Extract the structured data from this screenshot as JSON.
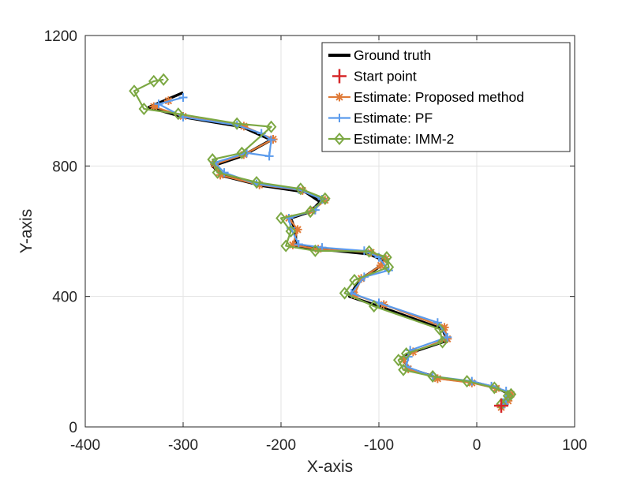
{
  "chart_data": {
    "type": "line",
    "title": "",
    "xlabel": "X-axis",
    "ylabel": "Y-axis",
    "xlim": [
      -400,
      100
    ],
    "ylim": [
      0,
      1200
    ],
    "xticks": [
      -400,
      -300,
      -200,
      -100,
      0,
      100
    ],
    "yticks": [
      0,
      400,
      800,
      1200
    ],
    "xtick_labels": [
      "-400",
      "-300",
      "-200",
      "-100",
      "0",
      "100"
    ],
    "ytick_labels": [
      "0",
      "400",
      "800",
      "1200"
    ],
    "grid": true,
    "legend_position": "top-right",
    "series": [
      {
        "name": "Ground truth",
        "color": "#000000",
        "marker": "none",
        "points": [
          [
            25,
            55
          ],
          [
            30,
            80
          ],
          [
            34,
            100
          ],
          [
            20,
            120
          ],
          [
            -5,
            138
          ],
          [
            -40,
            150
          ],
          [
            -70,
            180
          ],
          [
            -75,
            210
          ],
          [
            -70,
            225
          ],
          [
            -30,
            265
          ],
          [
            -35,
            300
          ],
          [
            -100,
            370
          ],
          [
            -130,
            400
          ],
          [
            -120,
            450
          ],
          [
            -100,
            490
          ],
          [
            -95,
            510
          ],
          [
            -110,
            530
          ],
          [
            -160,
            545
          ],
          [
            -185,
            555
          ],
          [
            -185,
            600
          ],
          [
            -190,
            640
          ],
          [
            -170,
            660
          ],
          [
            -160,
            690
          ],
          [
            -175,
            720
          ],
          [
            -220,
            740
          ],
          [
            -260,
            770
          ],
          [
            -270,
            800
          ],
          [
            -240,
            830
          ],
          [
            -210,
            880
          ],
          [
            -240,
            920
          ],
          [
            -300,
            950
          ],
          [
            -335,
            980
          ],
          [
            -300,
            1025
          ]
        ]
      },
      {
        "name": "Start point",
        "color": "#d62728",
        "marker": "plus",
        "points": [
          [
            25,
            65
          ]
        ]
      },
      {
        "name": "Estimate: Proposed method",
        "color": "#e07b39",
        "marker": "asterisk",
        "points": [
          [
            25,
            60
          ],
          [
            32,
            80
          ],
          [
            35,
            100
          ],
          [
            20,
            118
          ],
          [
            -5,
            135
          ],
          [
            -40,
            148
          ],
          [
            -70,
            178
          ],
          [
            -75,
            208
          ],
          [
            -65,
            230
          ],
          [
            -30,
            270
          ],
          [
            -33,
            305
          ],
          [
            -95,
            375
          ],
          [
            -125,
            405
          ],
          [
            -118,
            455
          ],
          [
            -98,
            495
          ],
          [
            -93,
            515
          ],
          [
            -108,
            535
          ],
          [
            -162,
            545
          ],
          [
            -188,
            558
          ],
          [
            -183,
            605
          ],
          [
            -192,
            640
          ],
          [
            -168,
            662
          ],
          [
            -155,
            695
          ],
          [
            -178,
            725
          ],
          [
            -222,
            742
          ],
          [
            -262,
            772
          ],
          [
            -268,
            805
          ],
          [
            -238,
            835
          ],
          [
            -208,
            882
          ],
          [
            -238,
            922
          ],
          [
            -300,
            952
          ],
          [
            -330,
            982
          ],
          [
            -315,
            1000
          ]
        ]
      },
      {
        "name": "Estimate: PF",
        "color": "#5b9bec",
        "marker": "plus",
        "points": [
          [
            28,
            70
          ],
          [
            30,
            85
          ],
          [
            30,
            110
          ],
          [
            15,
            125
          ],
          [
            -5,
            140
          ],
          [
            -45,
            155
          ],
          [
            -72,
            185
          ],
          [
            -70,
            215
          ],
          [
            -68,
            235
          ],
          [
            -30,
            275
          ],
          [
            -40,
            320
          ],
          [
            -100,
            380
          ],
          [
            -128,
            410
          ],
          [
            -115,
            460
          ],
          [
            -90,
            480
          ],
          [
            -100,
            520
          ],
          [
            -115,
            540
          ],
          [
            -158,
            550
          ],
          [
            -182,
            560
          ],
          [
            -190,
            610
          ],
          [
            -192,
            640
          ],
          [
            -165,
            665
          ],
          [
            -158,
            698
          ],
          [
            -182,
            728
          ],
          [
            -225,
            745
          ],
          [
            -258,
            780
          ],
          [
            -268,
            810
          ],
          [
            -235,
            840
          ],
          [
            -212,
            830
          ],
          [
            -210,
            880
          ],
          [
            -220,
            900
          ],
          [
            -245,
            925
          ],
          [
            -300,
            950
          ],
          [
            -325,
            990
          ],
          [
            -300,
            1010
          ]
        ]
      },
      {
        "name": "Estimate: IMM-2",
        "color": "#7ca843",
        "marker": "diamond",
        "points": [
          [
            25,
            70
          ],
          [
            32,
            95
          ],
          [
            35,
            100
          ],
          [
            18,
            120
          ],
          [
            -10,
            140
          ],
          [
            -45,
            155
          ],
          [
            -75,
            175
          ],
          [
            -80,
            205
          ],
          [
            -72,
            225
          ],
          [
            -35,
            260
          ],
          [
            -38,
            300
          ],
          [
            -105,
            370
          ],
          [
            -135,
            410
          ],
          [
            -125,
            450
          ],
          [
            -90,
            490
          ],
          [
            -92,
            520
          ],
          [
            -110,
            538
          ],
          [
            -165,
            540
          ],
          [
            -195,
            555
          ],
          [
            -190,
            600
          ],
          [
            -200,
            640
          ],
          [
            -170,
            660
          ],
          [
            -155,
            700
          ],
          [
            -180,
            730
          ],
          [
            -225,
            750
          ],
          [
            -265,
            780
          ],
          [
            -270,
            820
          ],
          [
            -240,
            840
          ],
          [
            -210,
            920
          ],
          [
            -245,
            930
          ],
          [
            -305,
            960
          ],
          [
            -340,
            975
          ],
          [
            -350,
            1030
          ],
          [
            -330,
            1060
          ],
          [
            -320,
            1065
          ]
        ]
      }
    ]
  }
}
